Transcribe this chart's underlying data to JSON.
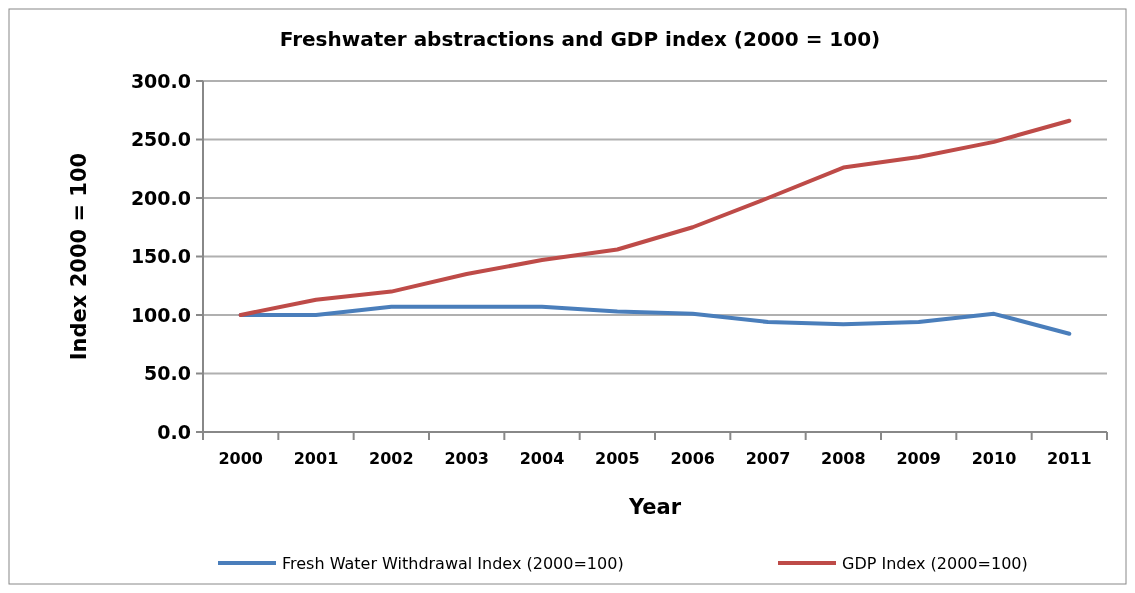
{
  "chart_data": {
    "type": "line",
    "title": "Freshwater abstractions and GDP index (2000 = 100)",
    "xlabel": "Year",
    "ylabel": "Index 2000 = 100",
    "categories": [
      "2000",
      "2001",
      "2002",
      "2003",
      "2004",
      "2005",
      "2006",
      "2007",
      "2008",
      "2009",
      "2010",
      "2011"
    ],
    "series": [
      {
        "name": "Fresh Water Withdrawal Index (2000=100)",
        "color": "#4a7ebb",
        "values": [
          100,
          100,
          107,
          107,
          107,
          103,
          101,
          94,
          92,
          94,
          101,
          84
        ]
      },
      {
        "name": "GDP Index (2000=100)",
        "color": "#be4b48",
        "values": [
          100,
          113,
          120,
          135,
          147,
          156,
          175,
          200,
          226,
          235,
          248,
          266
        ]
      }
    ],
    "ylim": [
      0,
      300
    ],
    "yticks": [
      {
        "value": 0,
        "label": "0.0"
      },
      {
        "value": 50,
        "label": "50.0"
      },
      {
        "value": 100,
        "label": "100.0"
      },
      {
        "value": 150,
        "label": "150.0"
      },
      {
        "value": 200,
        "label": "200.0"
      },
      {
        "value": 250,
        "label": "250.0"
      },
      {
        "value": 300,
        "label": "300.0"
      }
    ],
    "grid": "y",
    "legend": "bottom",
    "marker": "none",
    "line_style": "solid"
  }
}
